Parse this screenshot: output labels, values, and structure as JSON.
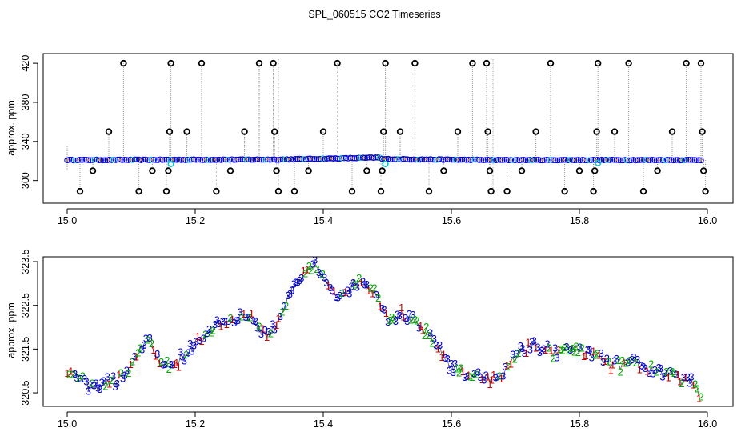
{
  "title": "SPL_060515  CO2 Timeseries",
  "colors": {
    "axis": "#000000",
    "line": "#888888",
    "circle_primary": "#0000cc",
    "circle_secondary": "#00c8c8",
    "outlier": "#000000",
    "series1": "#cc0000",
    "series2": "#00aa00",
    "series3": "#0000cc"
  },
  "chart_data": [
    {
      "type": "scatter",
      "ylabel": "approx. ppm",
      "xlabel": "",
      "xlim": [
        15.0,
        16.0
      ],
      "ylim": [
        285,
        425
      ],
      "x_ticks": [
        "15.0",
        "15.2",
        "15.4",
        "15.6",
        "15.8",
        "16.0"
      ],
      "x_tick_values": [
        15.0,
        15.2,
        15.4,
        15.6,
        15.8,
        16.0
      ],
      "y_ticks": [
        "300",
        "340",
        "380",
        "420"
      ],
      "y_tick_values": [
        300,
        340,
        380,
        420
      ],
      "baseline": {
        "segments": [
          {
            "x": [
              15.0,
              15.33
            ],
            "y": [
              321.0,
              321.5
            ]
          },
          {
            "x": [
              15.33,
              15.49
            ],
            "y": [
              321.5,
              323.5
            ]
          },
          {
            "x": [
              15.49,
              15.66
            ],
            "y": [
              322.0,
              321.0
            ]
          },
          {
            "x": [
              15.66,
              15.99
            ],
            "y": [
              321.0,
              321.0
            ]
          }
        ]
      },
      "outliers": [
        {
          "x": 15.02,
          "y": 289
        },
        {
          "x": 15.04,
          "y": 310
        },
        {
          "x": 15.065,
          "y": 350
        },
        {
          "x": 15.088,
          "y": 420
        },
        {
          "x": 15.112,
          "y": 289
        },
        {
          "x": 15.133,
          "y": 310
        },
        {
          "x": 15.155,
          "y": 289
        },
        {
          "x": 15.158,
          "y": 310
        },
        {
          "x": 15.16,
          "y": 350
        },
        {
          "x": 15.162,
          "y": 420
        },
        {
          "x": 15.187,
          "y": 350
        },
        {
          "x": 15.21,
          "y": 420
        },
        {
          "x": 15.233,
          "y": 289
        },
        {
          "x": 15.255,
          "y": 310
        },
        {
          "x": 15.277,
          "y": 350
        },
        {
          "x": 15.3,
          "y": 420
        },
        {
          "x": 15.322,
          "y": 420
        },
        {
          "x": 15.324,
          "y": 350
        },
        {
          "x": 15.327,
          "y": 310
        },
        {
          "x": 15.33,
          "y": 289
        },
        {
          "x": 15.355,
          "y": 289
        },
        {
          "x": 15.377,
          "y": 310
        },
        {
          "x": 15.4,
          "y": 350
        },
        {
          "x": 15.422,
          "y": 420
        },
        {
          "x": 15.445,
          "y": 289
        },
        {
          "x": 15.468,
          "y": 310
        },
        {
          "x": 15.49,
          "y": 289
        },
        {
          "x": 15.492,
          "y": 310
        },
        {
          "x": 15.494,
          "y": 350
        },
        {
          "x": 15.497,
          "y": 420
        },
        {
          "x": 15.52,
          "y": 350
        },
        {
          "x": 15.543,
          "y": 420
        },
        {
          "x": 15.565,
          "y": 289
        },
        {
          "x": 15.588,
          "y": 310
        },
        {
          "x": 15.61,
          "y": 350
        },
        {
          "x": 15.633,
          "y": 420
        },
        {
          "x": 15.655,
          "y": 420
        },
        {
          "x": 15.657,
          "y": 350
        },
        {
          "x": 15.66,
          "y": 310
        },
        {
          "x": 15.662,
          "y": 289
        },
        {
          "x": 15.687,
          "y": 289
        },
        {
          "x": 15.71,
          "y": 310
        },
        {
          "x": 15.732,
          "y": 350
        },
        {
          "x": 15.755,
          "y": 420
        },
        {
          "x": 15.777,
          "y": 289
        },
        {
          "x": 15.8,
          "y": 310
        },
        {
          "x": 15.822,
          "y": 289
        },
        {
          "x": 15.824,
          "y": 310
        },
        {
          "x": 15.827,
          "y": 350
        },
        {
          "x": 15.829,
          "y": 420
        },
        {
          "x": 15.855,
          "y": 350
        },
        {
          "x": 15.877,
          "y": 420
        },
        {
          "x": 15.9,
          "y": 289
        },
        {
          "x": 15.922,
          "y": 310
        },
        {
          "x": 15.945,
          "y": 350
        },
        {
          "x": 15.967,
          "y": 420
        },
        {
          "x": 15.99,
          "y": 420
        },
        {
          "x": 15.992,
          "y": 350
        },
        {
          "x": 15.994,
          "y": 310
        },
        {
          "x": 15.997,
          "y": 289
        }
      ],
      "highlighted": [
        {
          "x": 15.162,
          "y": 317
        },
        {
          "x": 15.497,
          "y": 317
        },
        {
          "x": 15.829,
          "y": 318
        }
      ]
    },
    {
      "type": "scatter",
      "ylabel": "approx. ppm",
      "xlabel": "",
      "xlim": [
        15.0,
        16.0
      ],
      "ylim": [
        320.3,
        323.5
      ],
      "x_ticks": [
        "15.0",
        "15.2",
        "15.4",
        "15.6",
        "15.8",
        "16.0"
      ],
      "x_tick_values": [
        15.0,
        15.2,
        15.4,
        15.6,
        15.8,
        16.0
      ],
      "y_ticks": [
        "320.5",
        "321.5",
        "322.5",
        "323.5"
      ],
      "y_tick_values": [
        320.5,
        321.5,
        322.5,
        323.5
      ],
      "series_labels": [
        "1",
        "2",
        "3"
      ],
      "profile": {
        "x": [
          15.0,
          15.02,
          15.04,
          15.06,
          15.08,
          15.1,
          15.11,
          15.12,
          15.13,
          15.14,
          15.16,
          15.18,
          15.2,
          15.22,
          15.24,
          15.26,
          15.28,
          15.3,
          15.31,
          15.32,
          15.33,
          15.35,
          15.37,
          15.39,
          15.4,
          15.42,
          15.44,
          15.46,
          15.48,
          15.5,
          15.52,
          15.54,
          15.56,
          15.58,
          15.6,
          15.62,
          15.64,
          15.66,
          15.68,
          15.7,
          15.72,
          15.74,
          15.76,
          15.78,
          15.8,
          15.82,
          15.84,
          15.86,
          15.88,
          15.9,
          15.92,
          15.94,
          15.96,
          15.98,
          15.99
        ],
        "y": [
          321.0,
          320.8,
          320.6,
          320.7,
          320.8,
          321.0,
          321.4,
          321.7,
          321.6,
          321.3,
          321.1,
          321.3,
          321.6,
          321.9,
          322.1,
          322.2,
          322.3,
          322.0,
          321.8,
          321.9,
          322.2,
          322.8,
          323.2,
          323.4,
          323.1,
          322.7,
          322.9,
          323.1,
          322.8,
          322.2,
          322.3,
          322.1,
          321.9,
          321.5,
          321.1,
          321.0,
          320.9,
          320.8,
          320.9,
          321.3,
          321.6,
          321.5,
          321.4,
          321.5,
          321.5,
          321.4,
          321.2,
          321.1,
          321.2,
          321.1,
          321.0,
          320.9,
          320.8,
          320.7,
          320.4
        ]
      }
    }
  ]
}
